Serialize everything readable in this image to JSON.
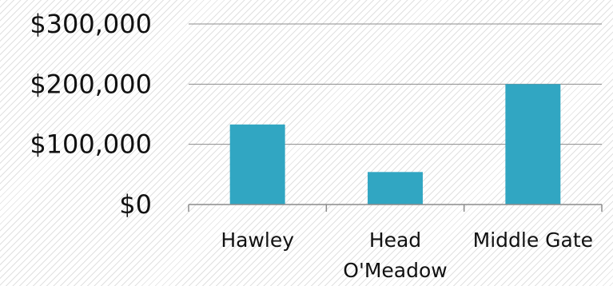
{
  "chart_data": {
    "type": "bar",
    "title": "",
    "xlabel": "",
    "ylabel": "",
    "categories": [
      "Hawley",
      "Head O'Meadow",
      "Middle Gate"
    ],
    "category_label_lines": [
      [
        "Hawley"
      ],
      [
        "Head",
        "O'Meadow"
      ],
      [
        "Middle Gate"
      ]
    ],
    "values": [
      133000,
      54000,
      200000
    ],
    "ylim": [
      0,
      300000
    ],
    "yticks": [
      0,
      100000,
      200000,
      300000
    ],
    "ytick_labels": [
      "$0",
      "$100,000",
      "$200,000",
      "$300,000"
    ],
    "grid": true,
    "legend": "none",
    "colors": {
      "bar": "#31A6C2",
      "grid": "#8c8c8c",
      "axis": "#8c8c8c",
      "text": "#111111"
    }
  }
}
